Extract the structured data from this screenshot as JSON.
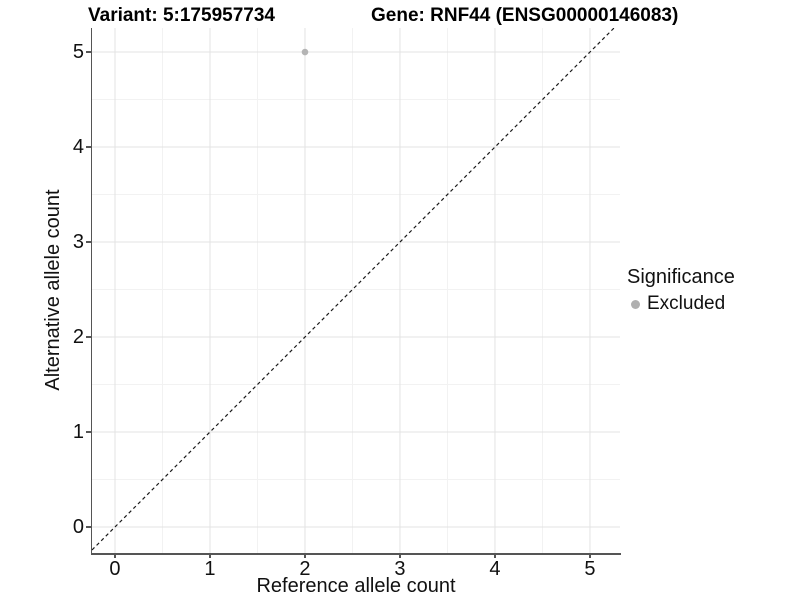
{
  "chart_data": {
    "type": "scatter",
    "titles": {
      "left": "Variant: 5:175957734",
      "right": "Gene: RNF44 (ENSG00000146083)"
    },
    "xlabel": "Reference allele count",
    "ylabel": "Alternative allele count",
    "x_ticks": [
      "0",
      "1",
      "2",
      "3",
      "4",
      "5"
    ],
    "y_ticks": [
      "0",
      "1",
      "2",
      "3",
      "4",
      "5"
    ],
    "x_tick_values": [
      0,
      1,
      2,
      3,
      4,
      5
    ],
    "y_tick_values": [
      0,
      1,
      2,
      3,
      4,
      5
    ],
    "xlim": [
      -0.242,
      5.316
    ],
    "ylim": [
      -0.274,
      5.253
    ],
    "grid": {
      "major": true,
      "minor": true
    },
    "series": [
      {
        "name": "Excluded",
        "marker": "circle",
        "color": "#b4b4b4",
        "points": [
          {
            "x": 2,
            "y": 5
          }
        ]
      }
    ],
    "identity_line": {
      "style": "dashed",
      "slope": 1,
      "intercept": 0,
      "color": "#1a1a1a"
    },
    "legend": {
      "title": "Significance",
      "position": "right",
      "entries": [
        {
          "label": "Excluded",
          "color": "#b0b0b0",
          "marker": "circle"
        }
      ]
    }
  },
  "colors": {
    "background": "#ffffff",
    "grid_major": "#e3e3e3",
    "grid_minor": "#f2f2f2",
    "axis_line": "#555555",
    "text": "#111111"
  }
}
